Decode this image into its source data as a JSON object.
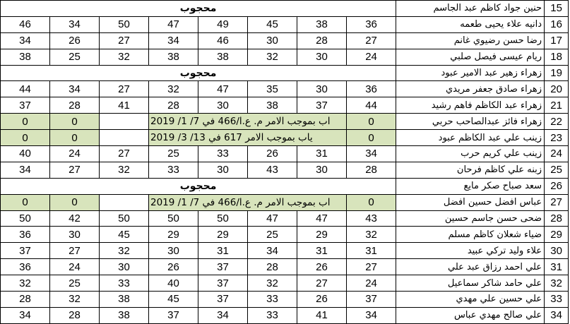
{
  "table": {
    "blocked_label": "محجوب",
    "green_hex": "#d8e4bc",
    "rows": [
      {
        "num": "15",
        "name": "حنين جواد كاظم عبد الجاسم",
        "type": "blocked"
      },
      {
        "num": "16",
        "name": "دانيه علاء يحيى طعمه",
        "type": "grades",
        "grades": [
          "46",
          "34",
          "50",
          "47",
          "49",
          "45",
          "38",
          "36"
        ]
      },
      {
        "num": "17",
        "name": "رضا حسن رضيوي غانم",
        "type": "grades",
        "grades": [
          "34",
          "26",
          "27",
          "34",
          "46",
          "30",
          "28",
          "27"
        ]
      },
      {
        "num": "18",
        "name": "ريام عيسى فيصل صلبي",
        "type": "grades",
        "grades": [
          "38",
          "25",
          "32",
          "38",
          "38",
          "32",
          "30",
          "24"
        ]
      },
      {
        "num": "19",
        "name": "زهراء زهير عبد الامير عبود",
        "type": "blocked"
      },
      {
        "num": "20",
        "name": "زهراء صادق جعفر مريدي",
        "type": "grades",
        "grades": [
          "44",
          "34",
          "27",
          "32",
          "47",
          "35",
          "30",
          "36"
        ]
      },
      {
        "num": "21",
        "name": "زهراء عبد الكاظم فاهم رشيد",
        "type": "grades",
        "grades": [
          "37",
          "28",
          "41",
          "28",
          "30",
          "38",
          "37",
          "44"
        ]
      },
      {
        "num": "22",
        "name": "زهراء فائز عبدالصاحب حربي",
        "type": "order",
        "zeros": [
          "0",
          "0",
          "0"
        ],
        "order_text": "اب بموجب الامر م. ع.ا/466 في 7/ 1/ 2019"
      },
      {
        "num": "23",
        "name": "زينب علي عبد الكاظم عبود",
        "type": "order",
        "zeros": [
          "0",
          "0",
          "0"
        ],
        "order_text": "ياب بموجب الامر 617 في 13/ 3/ 2019"
      },
      {
        "num": "24",
        "name": "زينب علي كريم حرب",
        "type": "grades",
        "grades": [
          "40",
          "24",
          "27",
          "25",
          "33",
          "26",
          "31",
          "34"
        ]
      },
      {
        "num": "25",
        "name": "زبنه علي كاظم فرحان",
        "type": "grades",
        "grades": [
          "34",
          "27",
          "32",
          "33",
          "30",
          "43",
          "30",
          "28"
        ]
      },
      {
        "num": "26",
        "name": "سعد صباح صكر مايع",
        "type": "blocked"
      },
      {
        "num": "27",
        "name": "عباس افضل حسين افضل",
        "type": "order",
        "zeros": [
          "0",
          "0",
          "0"
        ],
        "order_text": "اب بموجب الامر م. ع.ا/466 في 7/ 1/ 2019"
      },
      {
        "num": "28",
        "name": "ضحى حسن جاسم حسين",
        "type": "grades",
        "grades": [
          "50",
          "42",
          "50",
          "50",
          "50",
          "47",
          "47",
          "43"
        ]
      },
      {
        "num": "29",
        "name": "ضياء شعلان كاظم مسلم",
        "type": "grades",
        "grades": [
          "36",
          "30",
          "45",
          "29",
          "29",
          "25",
          "29",
          "32"
        ]
      },
      {
        "num": "30",
        "name": "علاء وليد تركي عبيد",
        "type": "grades",
        "grades": [
          "37",
          "27",
          "32",
          "30",
          "31",
          "34",
          "31",
          "31"
        ]
      },
      {
        "num": "31",
        "name": "علي احمد رزاق عبد علي",
        "type": "grades",
        "grades": [
          "36",
          "24",
          "30",
          "26",
          "37",
          "28",
          "26",
          "27"
        ]
      },
      {
        "num": "32",
        "name": "علي حامد شاكر سماعيل",
        "type": "grades",
        "grades": [
          "32",
          "25",
          "33",
          "40",
          "37",
          "32",
          "27",
          "24"
        ]
      },
      {
        "num": "33",
        "name": "علي حسين علي مهدي",
        "type": "grades",
        "grades": [
          "28",
          "32",
          "38",
          "45",
          "37",
          "33",
          "26",
          "37"
        ]
      },
      {
        "num": "34",
        "name": "علي صالح مهدي عباس",
        "type": "grades",
        "grades": [
          "34",
          "28",
          "38",
          "37",
          "34",
          "33",
          "41",
          "34"
        ]
      }
    ]
  }
}
